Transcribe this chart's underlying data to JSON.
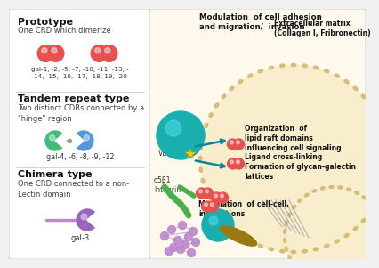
{
  "bg_color": "#f0f0f0",
  "left_panel_bg": "#ffffff",
  "right_panel_bg": "#fef9ec",
  "prototype_title": "Prototype",
  "prototype_desc": "One CRD which dimerize",
  "prototype_gals": "gal-1, -2, -5, -7, -10, -11, -13, -\n14, -15, -16, -17, -18, 19, -20",
  "tandem_title": "Tandem repeat type",
  "tandem_desc": "Two distinct CDRs connected by a\n\"hinge\" region",
  "tandem_gals": "gal-4, -6, -8, -9, -12",
  "chimera_title": "Chimera type",
  "chimera_desc": "One CRD connected to a non-\nLectin domain",
  "chimera_gals": "gal-3",
  "label_top": "Modulation  of cell adhesion\nand migration/  invasion",
  "label_ecm": "Extracellular matrix\n(Collagen I, Fribronectin)",
  "label_integrin": "α5β1\nIntegrin",
  "label_vegfr2": "VEGFR2",
  "label_org": "Organization  of\nlipid raft domains\ninfluencing cell signaling",
  "label_ligand": "Ligand cross-linking\nFormation of glycan-galectin\nlattices",
  "label_modcell": "Modulation  of cell-cell,\ninteractions"
}
